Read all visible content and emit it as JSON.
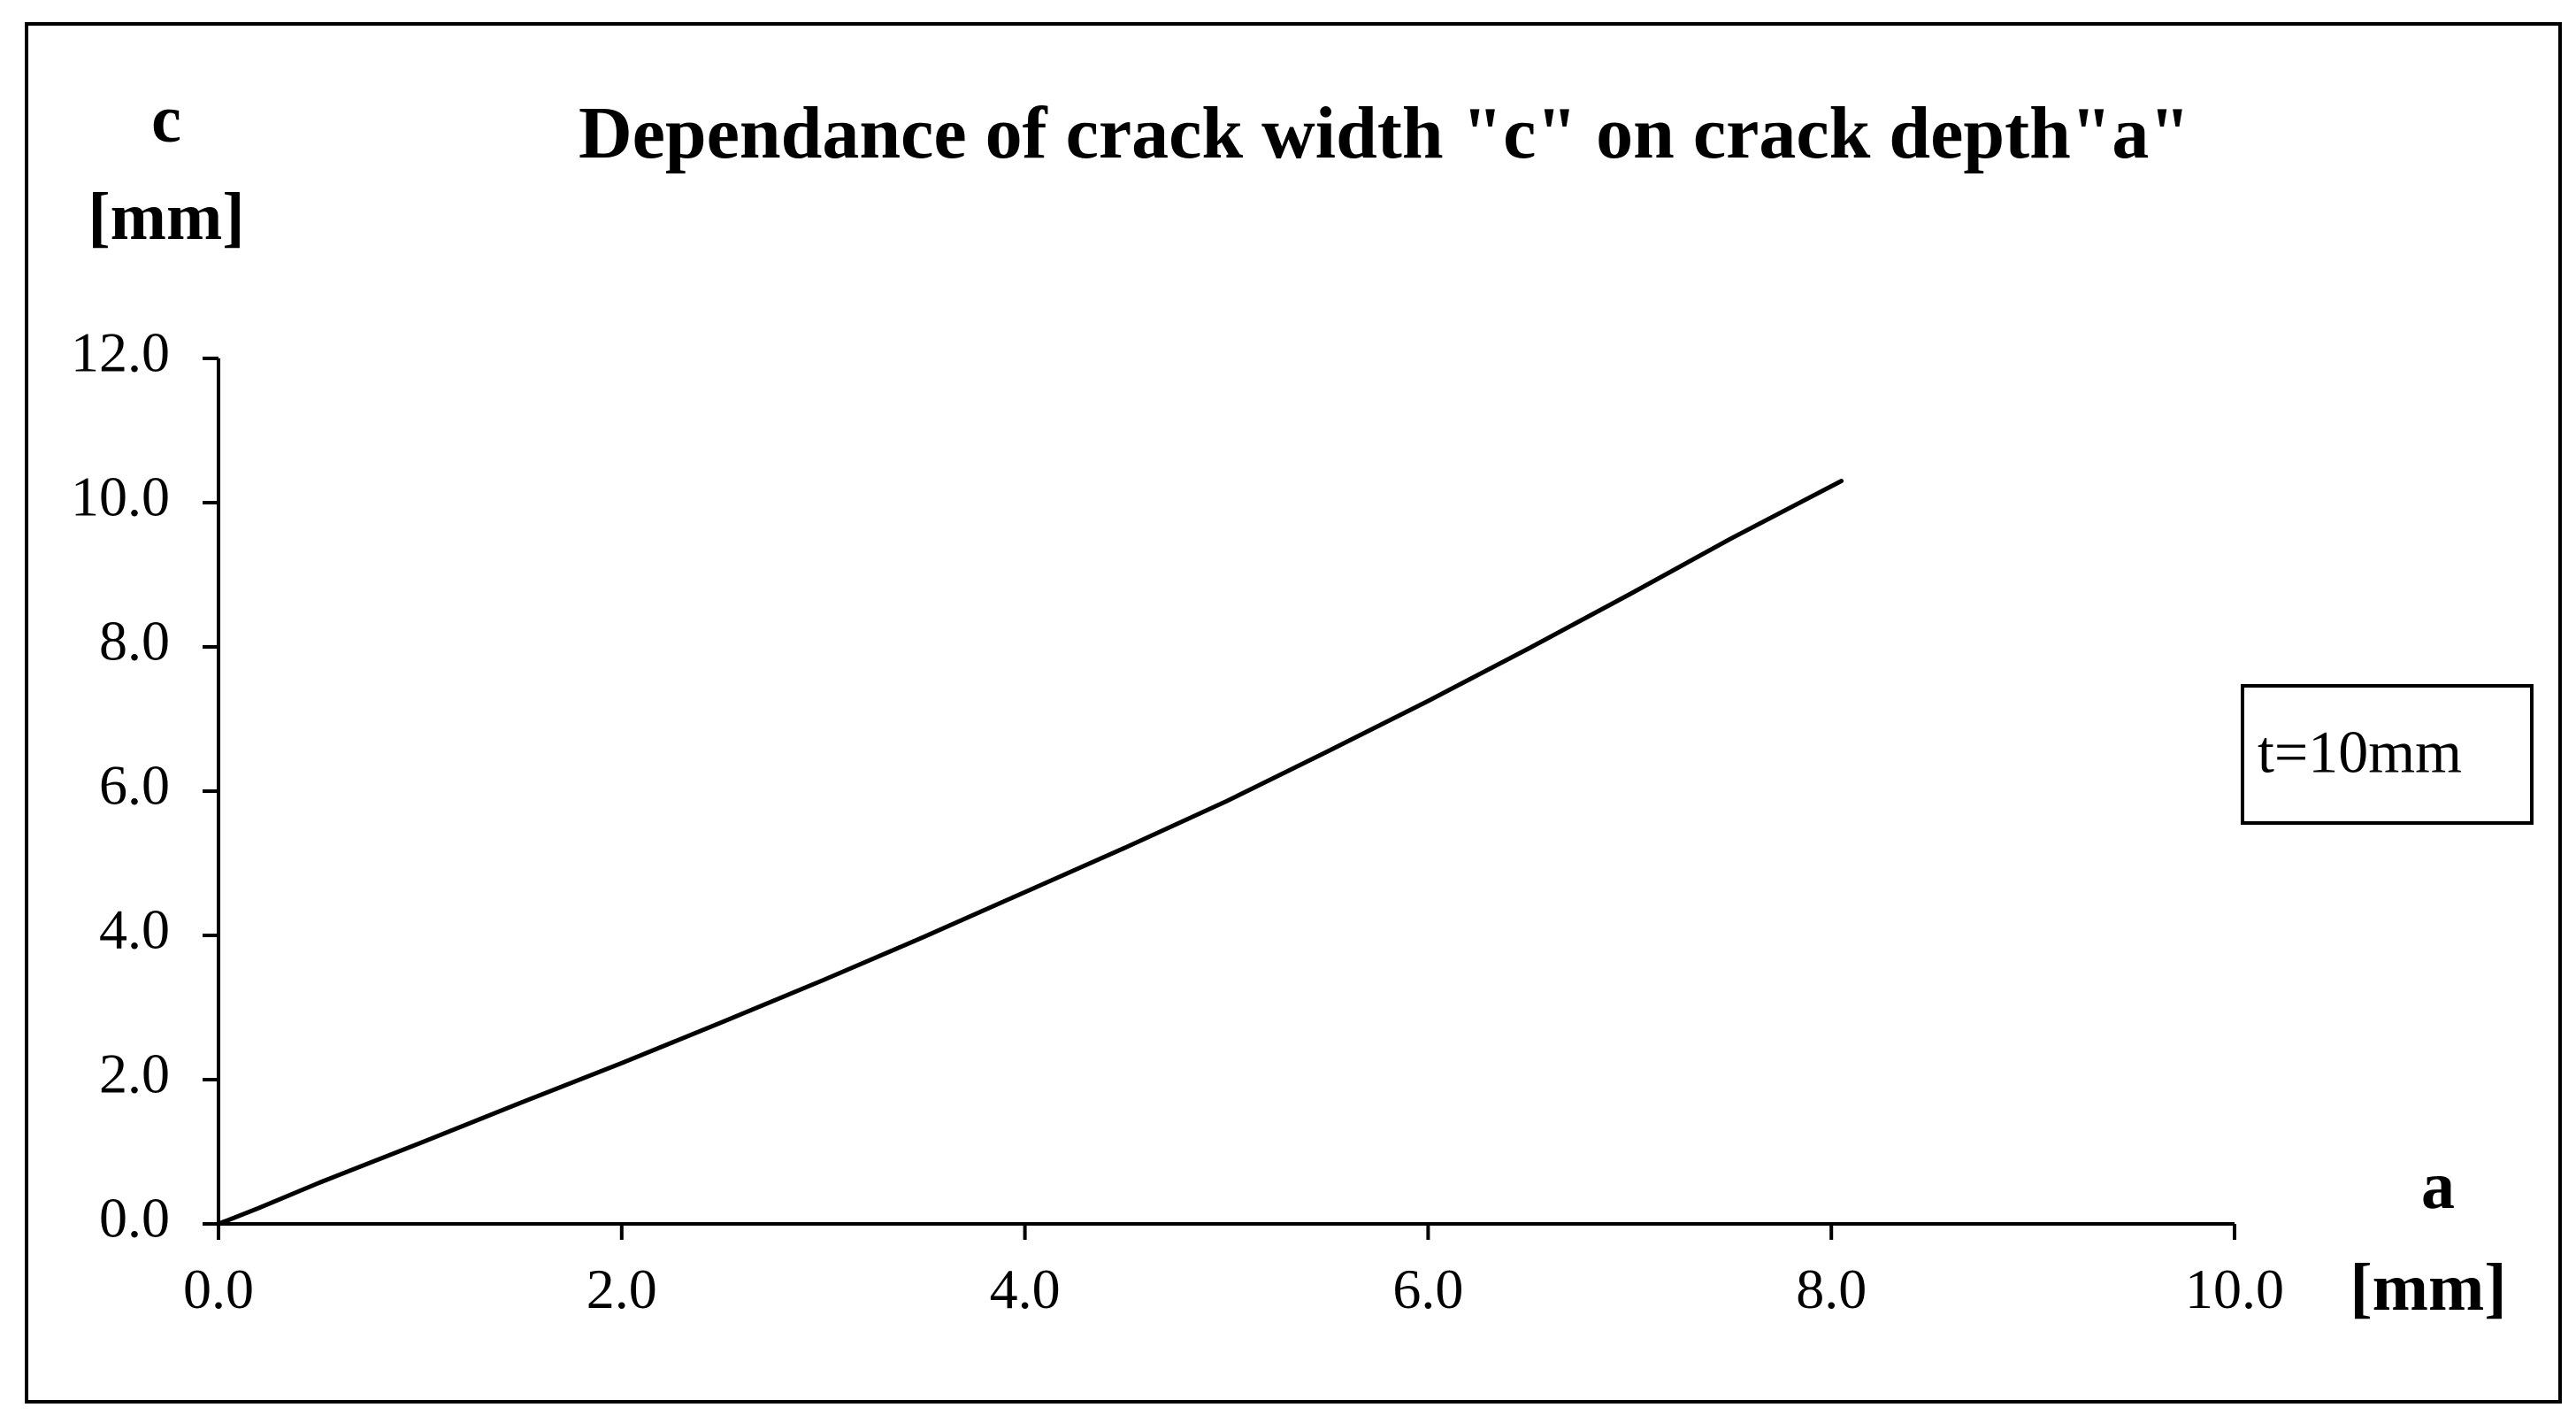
{
  "chart_data": {
    "type": "line",
    "title": "Dependance of crack width \"c\" on crack depth\"a\"",
    "xlabel": {
      "symbol": "a",
      "unit": "[mm]"
    },
    "ylabel": {
      "symbol": "c",
      "unit": "[mm]"
    },
    "xlim": [
      0,
      10
    ],
    "ylim": [
      0,
      12
    ],
    "xticks": [
      "0.0",
      "2.0",
      "4.0",
      "6.0",
      "8.0",
      "10.0"
    ],
    "yticks": [
      "0.0",
      "2.0",
      "4.0",
      "6.0",
      "8.0",
      "10.0",
      "12.0"
    ],
    "grid": false,
    "legend_placement": "right",
    "annotation": "t=10mm",
    "series": [
      {
        "color": "#000000",
        "x": [
          0.0,
          0.2,
          0.5,
          1.0,
          1.5,
          2.0,
          2.5,
          3.0,
          3.5,
          4.0,
          4.5,
          5.0,
          5.5,
          6.0,
          6.5,
          7.0,
          7.5,
          8.05
        ],
        "y": [
          0.0,
          0.22,
          0.57,
          1.12,
          1.68,
          2.23,
          2.8,
          3.38,
          3.98,
          4.6,
          5.22,
          5.86,
          6.55,
          7.25,
          7.98,
          8.73,
          9.5,
          10.3
        ]
      }
    ]
  }
}
